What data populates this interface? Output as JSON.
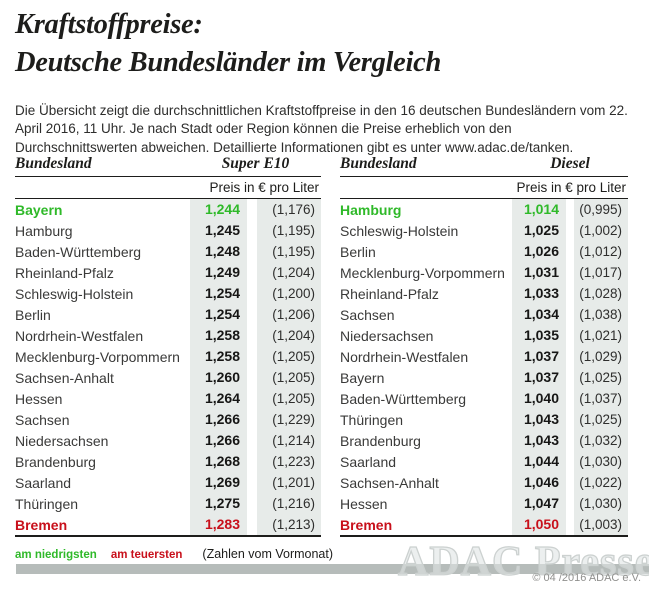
{
  "title": {
    "line1": "Kraftstoffpreise:",
    "line2": "Deutsche Bundesländer im Vergleich"
  },
  "intro": "Die Übersicht zeigt die durchschnittlichen Kraftstoffpreise in den 16 deutschen Bundesländern vom 22. April 2016, 11 Uhr. Je nach Stadt oder Region können die Preise erheblich von den Durchschnittswerten abweichen. Detaillierte Informationen gibt es unter www.adac.de/tanken.",
  "colors": {
    "lowest": "#2fb929",
    "highest": "#c8101b",
    "cell_bg": "#e7ebe9",
    "bar": "#b6bcba"
  },
  "tables": [
    {
      "name_header": "Bundesland",
      "fuel_header": "Super E10",
      "unit_header": "Preis in € pro Liter",
      "rows": [
        {
          "name": "Bayern",
          "price": "1,244",
          "prev": "(1,176)",
          "highlight": "lowest"
        },
        {
          "name": "Hamburg",
          "price": "1,245",
          "prev": "(1,195)"
        },
        {
          "name": "Baden-Württemberg",
          "price": "1,248",
          "prev": "(1,195)"
        },
        {
          "name": "Rheinland-Pfalz",
          "price": "1,249",
          "prev": "(1,204)"
        },
        {
          "name": "Schleswig-Holstein",
          "price": "1,254",
          "prev": "(1,200)"
        },
        {
          "name": "Berlin",
          "price": "1,254",
          "prev": "(1,206)"
        },
        {
          "name": "Nordrhein-Westfalen",
          "price": "1,258",
          "prev": "(1,204)"
        },
        {
          "name": "Mecklenburg-Vorpommern",
          "price": "1,258",
          "prev": "(1,205)"
        },
        {
          "name": "Sachsen-Anhalt",
          "price": "1,260",
          "prev": "(1,205)"
        },
        {
          "name": "Hessen",
          "price": "1,264",
          "prev": "(1,205)"
        },
        {
          "name": "Sachsen",
          "price": "1,266",
          "prev": "(1,229)"
        },
        {
          "name": "Niedersachsen",
          "price": "1,266",
          "prev": "(1,214)"
        },
        {
          "name": "Brandenburg",
          "price": "1,268",
          "prev": "(1,223)"
        },
        {
          "name": "Saarland",
          "price": "1,269",
          "prev": "(1,201)"
        },
        {
          "name": "Thüringen",
          "price": "1,275",
          "prev": "(1,216)"
        },
        {
          "name": "Bremen",
          "price": "1,283",
          "prev": "(1,213)",
          "highlight": "highest"
        }
      ]
    },
    {
      "name_header": "Bundesland",
      "fuel_header": "Diesel",
      "unit_header": "Preis in € pro Liter",
      "rows": [
        {
          "name": "Hamburg",
          "price": "1,014",
          "prev": "(0,995)",
          "highlight": "lowest"
        },
        {
          "name": "Schleswig-Holstein",
          "price": "1,025",
          "prev": "(1,002)"
        },
        {
          "name": "Berlin",
          "price": "1,026",
          "prev": "(1,012)"
        },
        {
          "name": "Mecklenburg-Vorpommern",
          "price": "1,031",
          "prev": "(1,017)"
        },
        {
          "name": "Rheinland-Pfalz",
          "price": "1,033",
          "prev": "(1,028)"
        },
        {
          "name": "Sachsen",
          "price": "1,034",
          "prev": "(1,038)"
        },
        {
          "name": "Niedersachsen",
          "price": "1,035",
          "prev": "(1,021)"
        },
        {
          "name": "Nordrhein-Westfalen",
          "price": "1,037",
          "prev": "(1,029)"
        },
        {
          "name": "Bayern",
          "price": "1,037",
          "prev": "(1,025)"
        },
        {
          "name": "Baden-Württemberg",
          "price": "1,040",
          "prev": "(1,037)"
        },
        {
          "name": "Thüringen",
          "price": "1,043",
          "prev": "(1,025)"
        },
        {
          "name": "Brandenburg",
          "price": "1,043",
          "prev": "(1,032)"
        },
        {
          "name": "Saarland",
          "price": "1,044",
          "prev": "(1,030)"
        },
        {
          "name": "Sachsen-Anhalt",
          "price": "1,046",
          "prev": "(1,022)"
        },
        {
          "name": "Hessen",
          "price": "1,047",
          "prev": "(1,030)"
        },
        {
          "name": "Bremen",
          "price": "1,050",
          "prev": "(1,003)",
          "highlight": "highest"
        }
      ]
    }
  ],
  "legend": {
    "lowest": "am niedrigsten",
    "highest": "am teuersten",
    "note": "(Zahlen vom Vormonat)"
  },
  "watermark": "ADAC Presse",
  "copyright": "© 04 /2016 ADAC e.V.",
  "chart_data": [
    {
      "type": "table",
      "title": "Super E10",
      "unit": "Preis in € pro Liter",
      "columns": [
        "Bundesland",
        "Preis",
        "Vormonat"
      ],
      "rows": [
        [
          "Bayern",
          1.244,
          1.176
        ],
        [
          "Hamburg",
          1.245,
          1.195
        ],
        [
          "Baden-Württemberg",
          1.248,
          1.195
        ],
        [
          "Rheinland-Pfalz",
          1.249,
          1.204
        ],
        [
          "Schleswig-Holstein",
          1.254,
          1.2
        ],
        [
          "Berlin",
          1.254,
          1.206
        ],
        [
          "Nordrhein-Westfalen",
          1.258,
          1.204
        ],
        [
          "Mecklenburg-Vorpommern",
          1.258,
          1.205
        ],
        [
          "Sachsen-Anhalt",
          1.26,
          1.205
        ],
        [
          "Hessen",
          1.264,
          1.205
        ],
        [
          "Sachsen",
          1.266,
          1.229
        ],
        [
          "Niedersachsen",
          1.266,
          1.214
        ],
        [
          "Brandenburg",
          1.268,
          1.223
        ],
        [
          "Saarland",
          1.269,
          1.201
        ],
        [
          "Thüringen",
          1.275,
          1.216
        ],
        [
          "Bremen",
          1.283,
          1.213
        ]
      ],
      "lowest": "Bayern",
      "highest": "Bremen"
    },
    {
      "type": "table",
      "title": "Diesel",
      "unit": "Preis in € pro Liter",
      "columns": [
        "Bundesland",
        "Preis",
        "Vormonat"
      ],
      "rows": [
        [
          "Hamburg",
          1.014,
          0.995
        ],
        [
          "Schleswig-Holstein",
          1.025,
          1.002
        ],
        [
          "Berlin",
          1.026,
          1.012
        ],
        [
          "Mecklenburg-Vorpommern",
          1.031,
          1.017
        ],
        [
          "Rheinland-Pfalz",
          1.033,
          1.028
        ],
        [
          "Sachsen",
          1.034,
          1.038
        ],
        [
          "Niedersachsen",
          1.035,
          1.021
        ],
        [
          "Nordrhein-Westfalen",
          1.037,
          1.029
        ],
        [
          "Bayern",
          1.037,
          1.025
        ],
        [
          "Baden-Württemberg",
          1.04,
          1.037
        ],
        [
          "Thüringen",
          1.043,
          1.025
        ],
        [
          "Brandenburg",
          1.043,
          1.032
        ],
        [
          "Saarland",
          1.044,
          1.03
        ],
        [
          "Sachsen-Anhalt",
          1.046,
          1.022
        ],
        [
          "Hessen",
          1.047,
          1.03
        ],
        [
          "Bremen",
          1.05,
          1.003
        ]
      ],
      "lowest": "Hamburg",
      "highest": "Bremen"
    }
  ]
}
